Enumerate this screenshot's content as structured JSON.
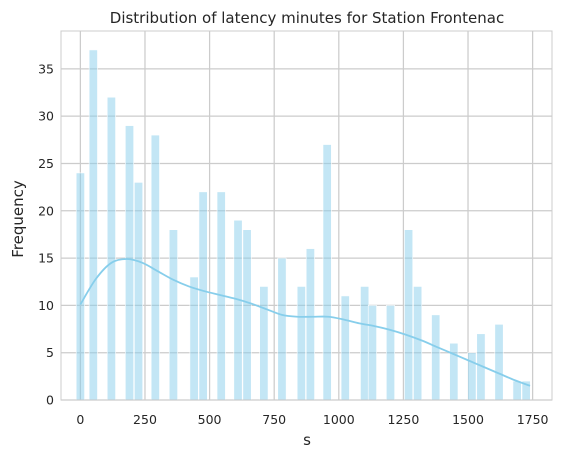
{
  "chart_data": {
    "type": "bar",
    "title": "Distribution of latency minutes for Station Frontenac",
    "xlabel": "s",
    "ylabel": "Frequency",
    "xlim": [
      -75,
      1825
    ],
    "ylim": [
      0,
      39
    ],
    "xticks": [
      0,
      250,
      500,
      750,
      1000,
      1250,
      1500,
      1750
    ],
    "yticks": [
      0,
      5,
      10,
      15,
      20,
      25,
      30,
      35
    ],
    "grid": true,
    "colors": {
      "bar": "#87ceeb",
      "kde": "#87ceeb",
      "grid": "#cccccc",
      "frame": "#cccccc"
    },
    "bin_width": 34.8,
    "bins": [
      {
        "x": 0,
        "count": 24
      },
      {
        "x": 50,
        "count": 37
      },
      {
        "x": 120,
        "count": 32
      },
      {
        "x": 190,
        "count": 29
      },
      {
        "x": 225,
        "count": 23
      },
      {
        "x": 290,
        "count": 28
      },
      {
        "x": 360,
        "count": 18
      },
      {
        "x": 440,
        "count": 13
      },
      {
        "x": 475,
        "count": 22
      },
      {
        "x": 545,
        "count": 22
      },
      {
        "x": 610,
        "count": 19
      },
      {
        "x": 645,
        "count": 18
      },
      {
        "x": 710,
        "count": 12
      },
      {
        "x": 780,
        "count": 15
      },
      {
        "x": 855,
        "count": 12
      },
      {
        "x": 890,
        "count": 16
      },
      {
        "x": 955,
        "count": 27
      },
      {
        "x": 1025,
        "count": 11
      },
      {
        "x": 1100,
        "count": 12
      },
      {
        "x": 1130,
        "count": 10
      },
      {
        "x": 1200,
        "count": 10
      },
      {
        "x": 1270,
        "count": 18
      },
      {
        "x": 1305,
        "count": 12
      },
      {
        "x": 1375,
        "count": 9
      },
      {
        "x": 1445,
        "count": 6
      },
      {
        "x": 1515,
        "count": 5
      },
      {
        "x": 1550,
        "count": 7
      },
      {
        "x": 1620,
        "count": 8
      },
      {
        "x": 1690,
        "count": 2
      },
      {
        "x": 1725,
        "count": 2
      }
    ],
    "kde": {
      "x": [
        0,
        60,
        120,
        180,
        240,
        300,
        360,
        420,
        480,
        540,
        600,
        660,
        720,
        780,
        840,
        900,
        960,
        1020,
        1080,
        1140,
        1200,
        1260,
        1320,
        1380,
        1440,
        1500,
        1560,
        1620,
        1680,
        1740
      ],
      "y": [
        10.1,
        12.8,
        14.5,
        14.9,
        14.5,
        13.6,
        12.7,
        12.0,
        11.5,
        11.1,
        10.7,
        10.2,
        9.6,
        9.0,
        8.8,
        8.8,
        8.8,
        8.5,
        8.1,
        7.8,
        7.4,
        6.9,
        6.3,
        5.6,
        4.9,
        4.2,
        3.5,
        2.8,
        2.1,
        1.5
      ]
    }
  }
}
